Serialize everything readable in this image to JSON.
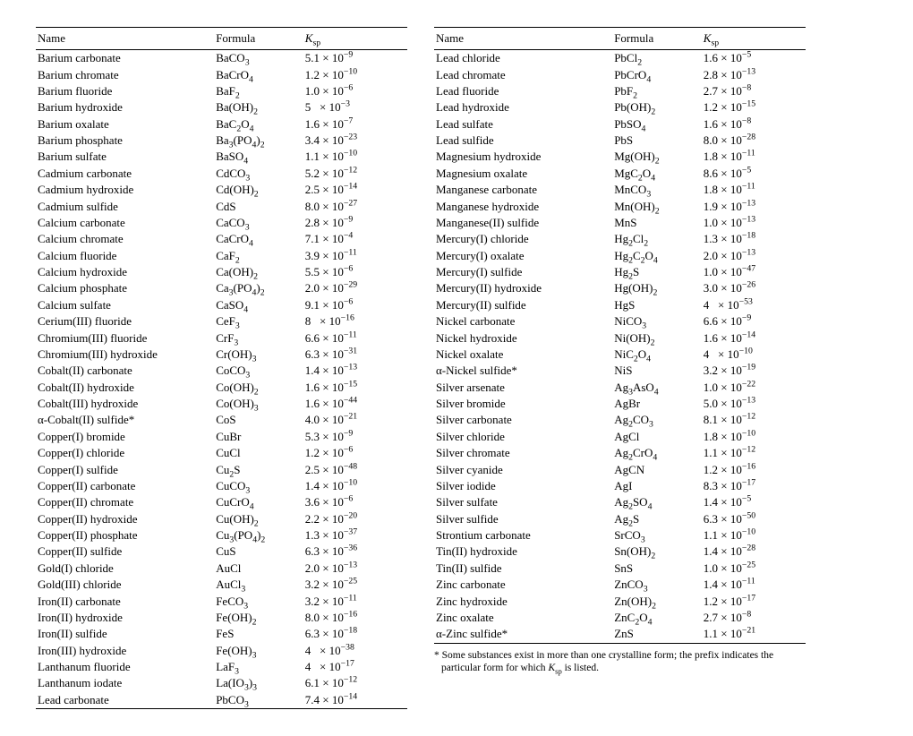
{
  "headers": {
    "name": "Name",
    "formula": "Formula",
    "ksp_html": "<span class='ksp-unit'>K</span><sub>sp</sub>"
  },
  "footnote_html": "* Some substances exist in more than one crystalline form; the prefix indicates the particular form for which <span class='ksp-unit'>K</span><sub>sp</sub> is listed.",
  "left": [
    {
      "name": "Barium carbonate",
      "formula": "BaCO<sub>3</sub>",
      "ksp": "5.1 × 10<sup>−9</sup>"
    },
    {
      "name": "Barium chromate",
      "formula": "BaCrO<sub>4</sub>",
      "ksp": "1.2 × 10<sup>−10</sup>"
    },
    {
      "name": "Barium fluoride",
      "formula": "BaF<sub>2</sub>",
      "ksp": "1.0 × 10<sup>−6</sup>"
    },
    {
      "name": "Barium hydroxide",
      "formula": "Ba(OH)<sub>2</sub>",
      "ksp": "5 &nbsp; × 10<sup>−3</sup>"
    },
    {
      "name": "Barium oxalate",
      "formula": "BaC<sub>2</sub>O<sub>4</sub>",
      "ksp": "1.6 × 10<sup>−7</sup>"
    },
    {
      "name": "Barium phosphate",
      "formula": "Ba<sub>3</sub>(PO<sub>4</sub>)<sub>2</sub>",
      "ksp": "3.4 × 10<sup>−23</sup>"
    },
    {
      "name": "Barium sulfate",
      "formula": "BaSO<sub>4</sub>",
      "ksp": "1.1 × 10<sup>−10</sup>"
    },
    {
      "name": "Cadmium carbonate",
      "formula": "CdCO<sub>3</sub>",
      "ksp": "5.2 × 10<sup>−12</sup>"
    },
    {
      "name": "Cadmium hydroxide",
      "formula": "Cd(OH)<sub>2</sub>",
      "ksp": "2.5 × 10<sup>−14</sup>"
    },
    {
      "name": "Cadmium sulfide",
      "formula": "CdS",
      "ksp": "8.0 × 10<sup>−27</sup>"
    },
    {
      "name": "Calcium carbonate",
      "formula": "CaCO<sub>3</sub>",
      "ksp": "2.8 × 10<sup>−9</sup>"
    },
    {
      "name": "Calcium chromate",
      "formula": "CaCrO<sub>4</sub>",
      "ksp": "7.1 × 10<sup>−4</sup>"
    },
    {
      "name": "Calcium fluoride",
      "formula": "CaF<sub>2</sub>",
      "ksp": "3.9 × 10<sup>−11</sup>"
    },
    {
      "name": "Calcium hydroxide",
      "formula": "Ca(OH)<sub>2</sub>",
      "ksp": "5.5 × 10<sup>−6</sup>"
    },
    {
      "name": "Calcium phosphate",
      "formula": "Ca<sub>3</sub>(PO<sub>4</sub>)<sub>2</sub>",
      "ksp": "2.0 × 10<sup>−29</sup>"
    },
    {
      "name": "Calcium sulfate",
      "formula": "CaSO<sub>4</sub>",
      "ksp": "9.1 × 10<sup>−6</sup>"
    },
    {
      "name": "Cerium(III) fluoride",
      "formula": "CeF<sub>3</sub>",
      "ksp": "8 &nbsp; × 10<sup>−16</sup>"
    },
    {
      "name": "Chromium(III) fluoride",
      "formula": "CrF<sub>3</sub>",
      "ksp": "6.6 × 10<sup>−11</sup>"
    },
    {
      "name": "Chromium(III) hydroxide",
      "formula": "Cr(OH)<sub>3</sub>",
      "ksp": "6.3 × 10<sup>−31</sup>"
    },
    {
      "name": "Cobalt(II) carbonate",
      "formula": "CoCO<sub>3</sub>",
      "ksp": "1.4 × 10<sup>−13</sup>"
    },
    {
      "name": "Cobalt(II) hydroxide",
      "formula": "Co(OH)<sub>2</sub>",
      "ksp": "1.6 × 10<sup>−15</sup>"
    },
    {
      "name": "Cobalt(III) hydroxide",
      "formula": "Co(OH)<sub>3</sub>",
      "ksp": "1.6 × 10<sup>−44</sup>"
    },
    {
      "name": "α-Cobalt(II) sulfide*",
      "formula": "CoS",
      "ksp": "4.0 × 10<sup>−21</sup>"
    },
    {
      "name": "Copper(I) bromide",
      "formula": "CuBr",
      "ksp": "5.3 × 10<sup>−9</sup>"
    },
    {
      "name": "Copper(I) chloride",
      "formula": "CuCl",
      "ksp": "1.2 × 10<sup>−6</sup>"
    },
    {
      "name": "Copper(I) sulfide",
      "formula": "Cu<sub>2</sub>S",
      "ksp": "2.5 × 10<sup>−48</sup>"
    },
    {
      "name": "Copper(II) carbonate",
      "formula": "CuCO<sub>3</sub>",
      "ksp": "1.4 × 10<sup>−10</sup>"
    },
    {
      "name": "Copper(II) chromate",
      "formula": "CuCrO<sub>4</sub>",
      "ksp": "3.6 × 10<sup>−6</sup>"
    },
    {
      "name": "Copper(II) hydroxide",
      "formula": "Cu(OH)<sub>2</sub>",
      "ksp": "2.2 × 10<sup>−20</sup>"
    },
    {
      "name": "Copper(II) phosphate",
      "formula": "Cu<sub>3</sub>(PO<sub>4</sub>)<sub>2</sub>",
      "ksp": "1.3 × 10<sup>−37</sup>"
    },
    {
      "name": "Copper(II) sulfide",
      "formula": "CuS",
      "ksp": "6.3 × 10<sup>−36</sup>"
    },
    {
      "name": "Gold(I) chloride",
      "formula": "AuCl",
      "ksp": "2.0 × 10<sup>−13</sup>"
    },
    {
      "name": "Gold(III) chloride",
      "formula": "AuCl<sub>3</sub>",
      "ksp": "3.2 × 10<sup>−25</sup>"
    },
    {
      "name": "Iron(II) carbonate",
      "formula": "FeCO<sub>3</sub>",
      "ksp": "3.2 × 10<sup>−11</sup>"
    },
    {
      "name": "Iron(II) hydroxide",
      "formula": "Fe(OH)<sub>2</sub>",
      "ksp": "8.0 × 10<sup>−16</sup>"
    },
    {
      "name": "Iron(II) sulfide",
      "formula": "FeS",
      "ksp": "6.3 × 10<sup>−18</sup>"
    },
    {
      "name": "Iron(III) hydroxide",
      "formula": "Fe(OH)<sub>3</sub>",
      "ksp": "4 &nbsp; × 10<sup>−38</sup>"
    },
    {
      "name": "Lanthanum fluoride",
      "formula": "LaF<sub>3</sub>",
      "ksp": "4 &nbsp; × 10<sup>−17</sup>"
    },
    {
      "name": "Lanthanum iodate",
      "formula": "La(IO<sub>3</sub>)<sub>3</sub>",
      "ksp": "6.1 × 10<sup>−12</sup>"
    },
    {
      "name": "Lead carbonate",
      "formula": "PbCO<sub>3</sub>",
      "ksp": "7.4 × 10<sup>−14</sup>"
    }
  ],
  "right": [
    {
      "name": "Lead chloride",
      "formula": "PbCl<sub>2</sub>",
      "ksp": "1.6 × 10<sup>−5</sup>"
    },
    {
      "name": "Lead chromate",
      "formula": "PbCrO<sub>4</sub>",
      "ksp": "2.8 × 10<sup>−13</sup>"
    },
    {
      "name": "Lead fluoride",
      "formula": "PbF<sub>2</sub>",
      "ksp": "2.7 × 10<sup>−8</sup>"
    },
    {
      "name": "Lead hydroxide",
      "formula": "Pb(OH)<sub>2</sub>",
      "ksp": "1.2 × 10<sup>−15</sup>"
    },
    {
      "name": "Lead sulfate",
      "formula": "PbSO<sub>4</sub>",
      "ksp": "1.6 × 10<sup>−8</sup>"
    },
    {
      "name": "Lead sulfide",
      "formula": "PbS",
      "ksp": "8.0 × 10<sup>−28</sup>"
    },
    {
      "name": "Magnesium hydroxide",
      "formula": "Mg(OH)<sub>2</sub>",
      "ksp": "1.8 × 10<sup>−11</sup>"
    },
    {
      "name": "Magnesium oxalate",
      "formula": "MgC<sub>2</sub>O<sub>4</sub>",
      "ksp": "8.6 × 10<sup>−5</sup>"
    },
    {
      "name": "Manganese carbonate",
      "formula": "MnCO<sub>3</sub>",
      "ksp": "1.8 × 10<sup>−11</sup>"
    },
    {
      "name": "Manganese hydroxide",
      "formula": "Mn(OH)<sub>2</sub>",
      "ksp": "1.9 × 10<sup>−13</sup>"
    },
    {
      "name": "Manganese(II) sulfide",
      "formula": "MnS",
      "ksp": "1.0 × 10<sup>−13</sup>"
    },
    {
      "name": "Mercury(I) chloride",
      "formula": "Hg<sub>2</sub>Cl<sub>2</sub>",
      "ksp": "1.3 × 10<sup>−18</sup>"
    },
    {
      "name": "Mercury(I) oxalate",
      "formula": "Hg<sub>2</sub>C<sub>2</sub>O<sub>4</sub>",
      "ksp": "2.0 × 10<sup>−13</sup>"
    },
    {
      "name": "Mercury(I) sulfide",
      "formula": "Hg<sub>2</sub>S",
      "ksp": "1.0 × 10<sup>−47</sup>"
    },
    {
      "name": "Mercury(II) hydroxide",
      "formula": "Hg(OH)<sub>2</sub>",
      "ksp": "3.0 × 10<sup>−26</sup>"
    },
    {
      "name": "Mercury(II) sulfide",
      "formula": "HgS",
      "ksp": "4 &nbsp; × 10<sup>−53</sup>"
    },
    {
      "name": "Nickel carbonate",
      "formula": "NiCO<sub>3</sub>",
      "ksp": "6.6 × 10<sup>−9</sup>"
    },
    {
      "name": "Nickel hydroxide",
      "formula": "Ni(OH)<sub>2</sub>",
      "ksp": "1.6 × 10<sup>−14</sup>"
    },
    {
      "name": "Nickel oxalate",
      "formula": "NiC<sub>2</sub>O<sub>4</sub>",
      "ksp": "4 &nbsp; × 10<sup>−10</sup>"
    },
    {
      "name": "α-Nickel sulfide*",
      "formula": "NiS",
      "ksp": "3.2 × 10<sup>−19</sup>"
    },
    {
      "name": "Silver arsenate",
      "formula": "Ag<sub>3</sub>AsO<sub>4</sub>",
      "ksp": "1.0 × 10<sup>−22</sup>"
    },
    {
      "name": "Silver bromide",
      "formula": "AgBr",
      "ksp": "5.0 × 10<sup>−13</sup>"
    },
    {
      "name": "Silver carbonate",
      "formula": "Ag<sub>2</sub>CO<sub>3</sub>",
      "ksp": "8.1 × 10<sup>−12</sup>"
    },
    {
      "name": "Silver chloride",
      "formula": "AgCl",
      "ksp": "1.8 × 10<sup>−10</sup>"
    },
    {
      "name": "Silver chromate",
      "formula": "Ag<sub>2</sub>CrO<sub>4</sub>",
      "ksp": "1.1 × 10<sup>−12</sup>"
    },
    {
      "name": "Silver cyanide",
      "formula": "AgCN",
      "ksp": "1.2 × 10<sup>−16</sup>"
    },
    {
      "name": "Silver iodide",
      "formula": "AgI",
      "ksp": "8.3 × 10<sup>−17</sup>"
    },
    {
      "name": "Silver sulfate",
      "formula": "Ag<sub>2</sub>SO<sub>4</sub>",
      "ksp": "1.4 × 10<sup>−5</sup>"
    },
    {
      "name": "Silver sulfide",
      "formula": "Ag<sub>2</sub>S",
      "ksp": "6.3 × 10<sup>−50</sup>"
    },
    {
      "name": "Strontium carbonate",
      "formula": "SrCO<sub>3</sub>",
      "ksp": "1.1 × 10<sup>−10</sup>"
    },
    {
      "name": "Tin(II) hydroxide",
      "formula": "Sn(OH)<sub>2</sub>",
      "ksp": "1.4 × 10<sup>−28</sup>"
    },
    {
      "name": "Tin(II) sulfide",
      "formula": "SnS",
      "ksp": "1.0 × 10<sup>−25</sup>"
    },
    {
      "name": "Zinc carbonate",
      "formula": "ZnCO<sub>3</sub>",
      "ksp": "1.4 × 10<sup>−11</sup>"
    },
    {
      "name": "Zinc hydroxide",
      "formula": "Zn(OH)<sub>2</sub>",
      "ksp": "1.2 × 10<sup>−17</sup>"
    },
    {
      "name": "Zinc oxalate",
      "formula": "ZnC<sub>2</sub>O<sub>4</sub>",
      "ksp": "2.7 × 10<sup>−8</sup>"
    },
    {
      "name": "α-Zinc sulfide*",
      "formula": "ZnS",
      "ksp": "1.1 × 10<sup>−21</sup>"
    }
  ]
}
